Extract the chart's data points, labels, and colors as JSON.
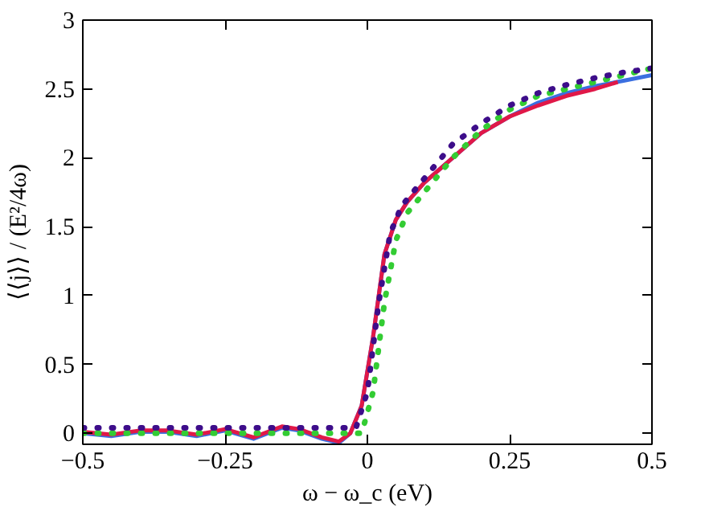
{
  "chart_data": {
    "type": "line",
    "xlabel": "ω − ω_c (eV)",
    "ylabel": "⟨⟨j⟩⟩ / (E²/4ω)",
    "xlim": [
      -0.5,
      0.5
    ],
    "ylim": [
      -0.08,
      3
    ],
    "xticks": [
      -0.5,
      -0.25,
      0,
      0.25,
      0.5
    ],
    "yticks": [
      0,
      0.5,
      1,
      1.5,
      2,
      2.5,
      3
    ],
    "grid": false,
    "series": [
      {
        "color": "#3b6fe0",
        "line_style": "solid",
        "x": [
          -0.5,
          -0.45,
          -0.4,
          -0.35,
          -0.3,
          -0.25,
          -0.2,
          -0.15,
          -0.12,
          -0.08,
          -0.05,
          -0.03,
          -0.01,
          0.01,
          0.03,
          0.05,
          0.07,
          0.1,
          0.15,
          0.2,
          0.25,
          0.3,
          0.35,
          0.4,
          0.45,
          0.5
        ],
        "values": [
          0.0,
          -0.02,
          0.01,
          0.01,
          -0.02,
          0.02,
          -0.04,
          0.04,
          0.02,
          -0.04,
          -0.07,
          0.0,
          0.2,
          0.7,
          1.3,
          1.55,
          1.68,
          1.82,
          2.0,
          2.18,
          2.3,
          2.4,
          2.47,
          2.52,
          2.56,
          2.6
        ]
      },
      {
        "color": "#e01848",
        "line_style": "solid",
        "x": [
          -0.5,
          -0.45,
          -0.4,
          -0.35,
          -0.3,
          -0.25,
          -0.2,
          -0.15,
          -0.12,
          -0.08,
          -0.05,
          -0.03,
          -0.01,
          0.01,
          0.03,
          0.05,
          0.07,
          0.1,
          0.15,
          0.2,
          0.25,
          0.3,
          0.35,
          0.4,
          0.44
        ],
        "values": [
          0.01,
          -0.01,
          0.02,
          0.02,
          -0.01,
          0.03,
          -0.03,
          0.05,
          0.03,
          -0.03,
          -0.06,
          0.0,
          0.2,
          0.7,
          1.3,
          1.55,
          1.68,
          1.82,
          2.0,
          2.18,
          2.3,
          2.38,
          2.45,
          2.5,
          2.55
        ]
      },
      {
        "color": "#33cc33",
        "line_style": "dotted",
        "x": [
          -0.5,
          -0.01,
          0.01,
          0.03,
          0.05,
          0.07,
          0.1,
          0.15,
          0.2,
          0.25,
          0.3,
          0.35,
          0.4,
          0.45,
          0.5
        ],
        "values": [
          0,
          0,
          0.3,
          0.95,
          1.4,
          1.6,
          1.75,
          2.0,
          2.2,
          2.35,
          2.45,
          2.5,
          2.55,
          2.6,
          2.65
        ]
      },
      {
        "color": "#3d0d8a",
        "line_style": "dotted",
        "x": [
          -0.5,
          -0.02,
          0,
          0.02,
          0.04,
          0.06,
          0.1,
          0.15,
          0.2,
          0.25,
          0.3,
          0.35,
          0.4,
          0.45,
          0.5
        ],
        "values": [
          0.04,
          0.04,
          0.3,
          0.95,
          1.45,
          1.65,
          1.85,
          2.1,
          2.25,
          2.38,
          2.47,
          2.53,
          2.58,
          2.62,
          2.65
        ]
      }
    ]
  }
}
